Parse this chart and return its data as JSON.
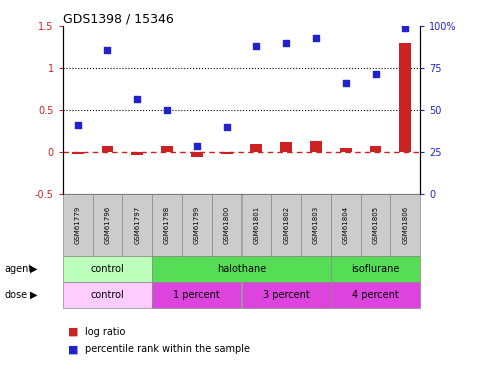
{
  "title": "GDS1398 / 15346",
  "samples": [
    "GSM61779",
    "GSM61796",
    "GSM61797",
    "GSM61798",
    "GSM61799",
    "GSM61800",
    "GSM61801",
    "GSM61802",
    "GSM61803",
    "GSM61804",
    "GSM61805",
    "GSM61806"
  ],
  "log_ratio": [
    -0.02,
    0.07,
    -0.03,
    0.07,
    -0.05,
    -0.02,
    0.1,
    0.12,
    0.14,
    0.05,
    0.07,
    1.3
  ],
  "percentile_rank": [
    0.33,
    1.22,
    0.63,
    0.5,
    0.08,
    0.3,
    1.27,
    1.3,
    1.36,
    0.83,
    0.93,
    1.48
  ],
  "agent_groups": [
    {
      "label": "control",
      "start": 0,
      "end": 3,
      "color": "#bbffbb"
    },
    {
      "label": "halothane",
      "start": 3,
      "end": 9,
      "color": "#55dd55"
    },
    {
      "label": "isoflurane",
      "start": 9,
      "end": 12,
      "color": "#55dd55"
    }
  ],
  "dose_groups": [
    {
      "label": "control",
      "start": 0,
      "end": 3,
      "color": "#ffccff"
    },
    {
      "label": "1 percent",
      "start": 3,
      "end": 6,
      "color": "#dd44dd"
    },
    {
      "label": "3 percent",
      "start": 6,
      "end": 9,
      "color": "#dd44dd"
    },
    {
      "label": "4 percent",
      "start": 9,
      "end": 12,
      "color": "#dd44dd"
    }
  ],
  "ylim_left": [
    -0.5,
    1.5
  ],
  "yticks_left": [
    -0.5,
    0.0,
    0.5,
    1.0,
    1.5
  ],
  "ylim_right": [
    0,
    100
  ],
  "yticks_right": [
    0,
    25,
    50,
    75,
    100
  ],
  "bar_color": "#cc2222",
  "scatter_color": "#2222cc",
  "dashed_line_color": "#cc2222",
  "bg_color": "#ffffff",
  "sample_box_color": "#cccccc"
}
